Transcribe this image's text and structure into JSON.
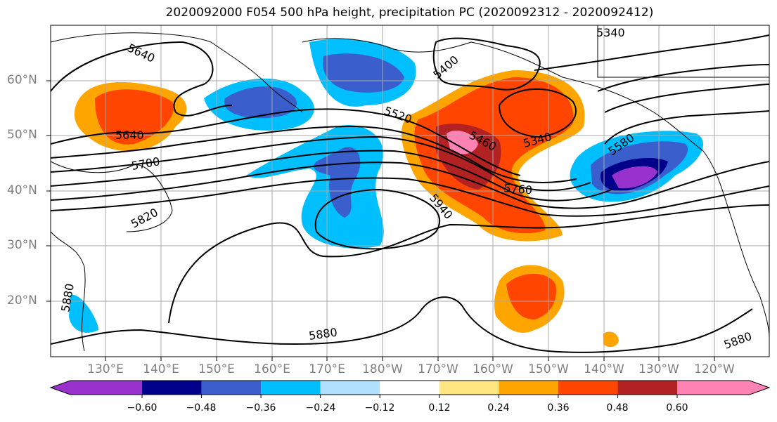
{
  "title": "2020092000 F054 500 hPa height, precipitation PC (2020092312 - 2020092412)",
  "map": {
    "lat_labels": [
      "60°N",
      "50°N",
      "40°N",
      "30°N",
      "20°N"
    ],
    "lon_labels": [
      "130°E",
      "140°E",
      "150°E",
      "160°E",
      "170°E",
      "180°W",
      "170°W",
      "160°W",
      "150°W",
      "140°W",
      "130°W",
      "120°W"
    ],
    "contour_labels": [
      "5640",
      "5640",
      "5700",
      "5820",
      "5880",
      "5880",
      "5880",
      "5400",
      "5520",
      "5460",
      "5340",
      "5340",
      "5580",
      "5760",
      "5940"
    ],
    "colors": {
      "grid": "#a8a8a8",
      "contour": "#000000"
    }
  },
  "colorbar": {
    "ticks": [
      "−0.60",
      "−0.48",
      "−0.36",
      "−0.24",
      "−0.12",
      "0.12",
      "0.24",
      "0.36",
      "0.48",
      "0.60"
    ],
    "colors": [
      "#9932cc",
      "#00008b",
      "#3a5fcd",
      "#00bfff",
      "#b0e0ff",
      "#ffffff",
      "#ffe680",
      "#ffa500",
      "#ff4500",
      "#b22222",
      "#ff82b4"
    ]
  }
}
